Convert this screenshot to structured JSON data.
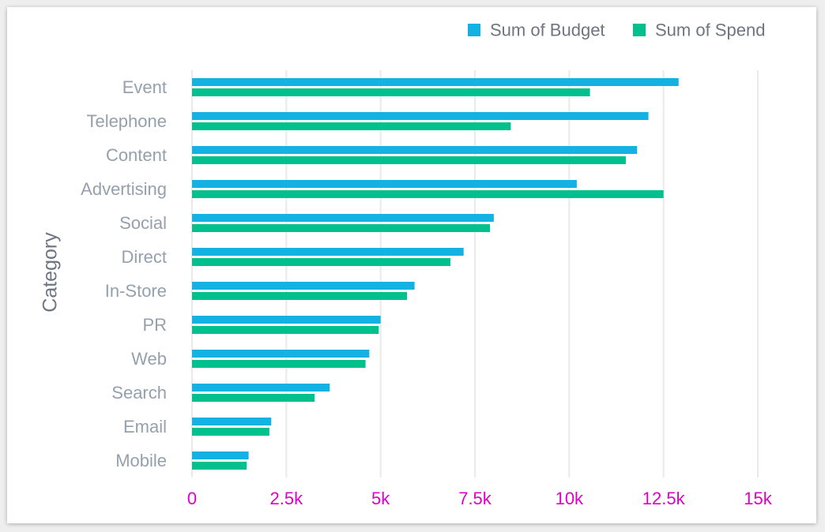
{
  "chart_data": {
    "type": "bar",
    "orientation": "horizontal",
    "categories": [
      "Event",
      "Telephone",
      "Content",
      "Advertising",
      "Social",
      "Direct",
      "In-Store",
      "PR",
      "Web",
      "Search",
      "Email",
      "Mobile"
    ],
    "series": [
      {
        "name": "Sum of Budget",
        "color": "#14b2e2",
        "values": [
          12900,
          12100,
          11800,
          10200,
          8000,
          7200,
          5900,
          5000,
          4700,
          3650,
          2100,
          1500
        ]
      },
      {
        "name": "Sum of Spend",
        "color": "#00c18d",
        "values": [
          10550,
          8450,
          11500,
          12500,
          7900,
          6850,
          5700,
          4950,
          4600,
          3250,
          2050,
          1450
        ]
      }
    ],
    "xlabel": "",
    "ylabel": "Category",
    "xlim": [
      0,
      15000
    ],
    "x_ticks": [
      "0",
      "2.5k",
      "5k",
      "7.5k",
      "10k",
      "12.5k",
      "15k"
    ],
    "tick_label_color": "#e100c8",
    "gridlines": true,
    "legend_position": "top-right"
  }
}
